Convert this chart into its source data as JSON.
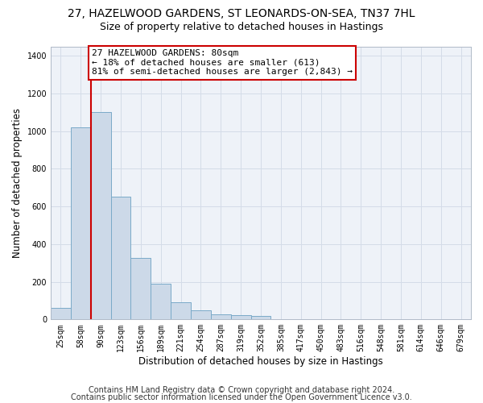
{
  "title_line1": "27, HAZELWOOD GARDENS, ST LEONARDS-ON-SEA, TN37 7HL",
  "title_line2": "Size of property relative to detached houses in Hastings",
  "xlabel": "Distribution of detached houses by size in Hastings",
  "ylabel": "Number of detached properties",
  "bar_color": "#ccd9e8",
  "bar_edge_color": "#7aaac8",
  "grid_color": "#d4dce8",
  "background_color": "#eef2f8",
  "annotation_box_color": "#cc0000",
  "annotation_text": "27 HAZELWOOD GARDENS: 80sqm\n← 18% of detached houses are smaller (613)\n81% of semi-detached houses are larger (2,843) →",
  "footer_line1": "Contains HM Land Registry data © Crown copyright and database right 2024.",
  "footer_line2": "Contains public sector information licensed under the Open Government Licence v3.0.",
  "categories": [
    "25sqm",
    "58sqm",
    "90sqm",
    "123sqm",
    "156sqm",
    "189sqm",
    "221sqm",
    "254sqm",
    "287sqm",
    "319sqm",
    "352sqm",
    "385sqm",
    "417sqm",
    "450sqm",
    "483sqm",
    "516sqm",
    "548sqm",
    "581sqm",
    "614sqm",
    "646sqm",
    "679sqm"
  ],
  "values": [
    63,
    1020,
    1100,
    650,
    325,
    188,
    90,
    47,
    28,
    22,
    18,
    0,
    0,
    0,
    0,
    0,
    0,
    0,
    0,
    0,
    0
  ],
  "red_line_x": 1.5,
  "ylim": [
    0,
    1450
  ],
  "yticks": [
    0,
    200,
    400,
    600,
    800,
    1000,
    1200,
    1400
  ],
  "title_fontsize": 10,
  "subtitle_fontsize": 9,
  "axis_label_fontsize": 8.5,
  "tick_fontsize": 7,
  "annotation_fontsize": 8,
  "footer_fontsize": 7
}
